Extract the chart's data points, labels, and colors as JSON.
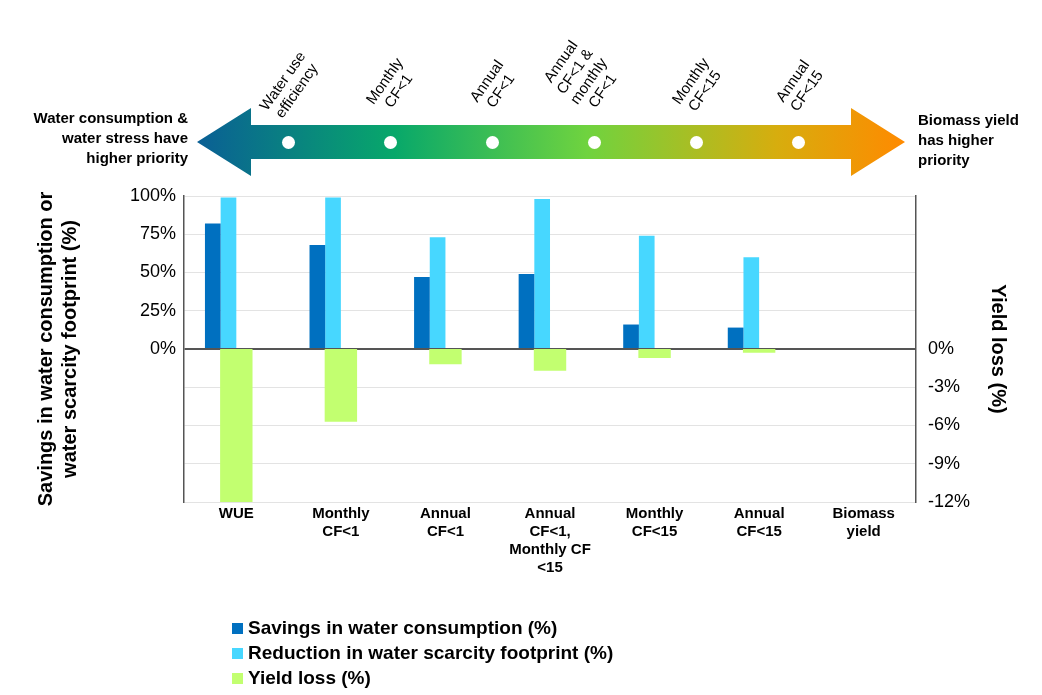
{
  "chart_data": {
    "type": "bar",
    "categories": [
      "WUE",
      "Monthly CF<1",
      "Annual CF<1",
      "Annual CF<1, Monthly CF <15",
      "Monthly CF<15",
      "Annual CF<15",
      "Biomass yield"
    ],
    "series": [
      {
        "name": "Savings in water consumption (%)",
        "color": "#0070c0",
        "values": [
          82,
          68,
          47,
          49,
          16,
          14,
          null
        ]
      },
      {
        "name": "Reduction in water scarcity footprint (%)",
        "color": "#47d7ff",
        "values": [
          99,
          99,
          73,
          98,
          74,
          60,
          null
        ]
      },
      {
        "name": "Yield loss (%)",
        "color": "#c2ff70",
        "axis": "y2",
        "values": [
          -12,
          -5.7,
          -1.2,
          -1.7,
          -0.7,
          -0.3,
          null
        ]
      }
    ],
    "ylabel": "Savings in water consumption or water scarcity footprint (%)",
    "y2label": "Yield loss (%)",
    "ylim": [
      -100,
      100
    ],
    "yticks": [
      {
        "value": -100,
        "label": null
      },
      {
        "value": -75,
        "label": null
      },
      {
        "value": -50,
        "label": null
      },
      {
        "value": -25,
        "label": null
      },
      {
        "value": 0,
        "label": "0%"
      },
      {
        "value": 25,
        "label": "25%"
      },
      {
        "value": 50,
        "label": "50%"
      },
      {
        "value": 75,
        "label": "75%"
      },
      {
        "value": 100,
        "label": "100%"
      }
    ],
    "y2lim": [
      -12,
      12
    ],
    "y2ticks": [
      {
        "value": 0,
        "label": "0%"
      },
      {
        "value": -3,
        "label": "-3%"
      },
      {
        "value": -6,
        "label": "-6%"
      },
      {
        "value": -9,
        "label": "-9%"
      },
      {
        "value": -12,
        "label": "-12%"
      }
    ],
    "grid": "y",
    "legend": "bottom",
    "annotations": [
      "Water consumption & water stress have higher priority",
      "Biomass yield has higher priority",
      "Water use efficiency",
      "Monthly CF<1",
      "Annual CF<1",
      "Annual  CF<1 & monthly CF<1",
      "Monthly CF<15",
      "Annual CF<15"
    ]
  }
}
